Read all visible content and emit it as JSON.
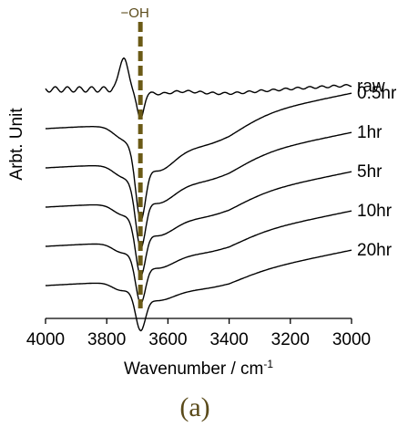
{
  "chart_data": {
    "type": "line",
    "xlabel": "Wavenumber / cm",
    "xlabel_superscript": "-1",
    "ylabel": "Arbt. Unit",
    "xlim": [
      4000,
      3000
    ],
    "x_reversed": true,
    "x_ticks": [
      4000,
      3800,
      3600,
      3400,
      3200,
      3000
    ],
    "y_ticks_shown": false,
    "grid": false,
    "annotation": {
      "label": "−OH",
      "x": 3690,
      "style": "dashed vertical line",
      "color": "#6b5a16"
    },
    "panel_label": "(a)",
    "series": [
      {
        "name": "raw",
        "offset": 6,
        "shape": "raw"
      },
      {
        "name": "0.5hr",
        "offset": 5,
        "shape": "treated"
      },
      {
        "name": "1hr",
        "offset": 4,
        "shape": "treated"
      },
      {
        "name": "5hr",
        "offset": 3,
        "shape": "treated"
      },
      {
        "name": "10hr",
        "offset": 2,
        "shape": "treated"
      },
      {
        "name": "20hr",
        "offset": 1,
        "shape": "treated"
      }
    ]
  }
}
